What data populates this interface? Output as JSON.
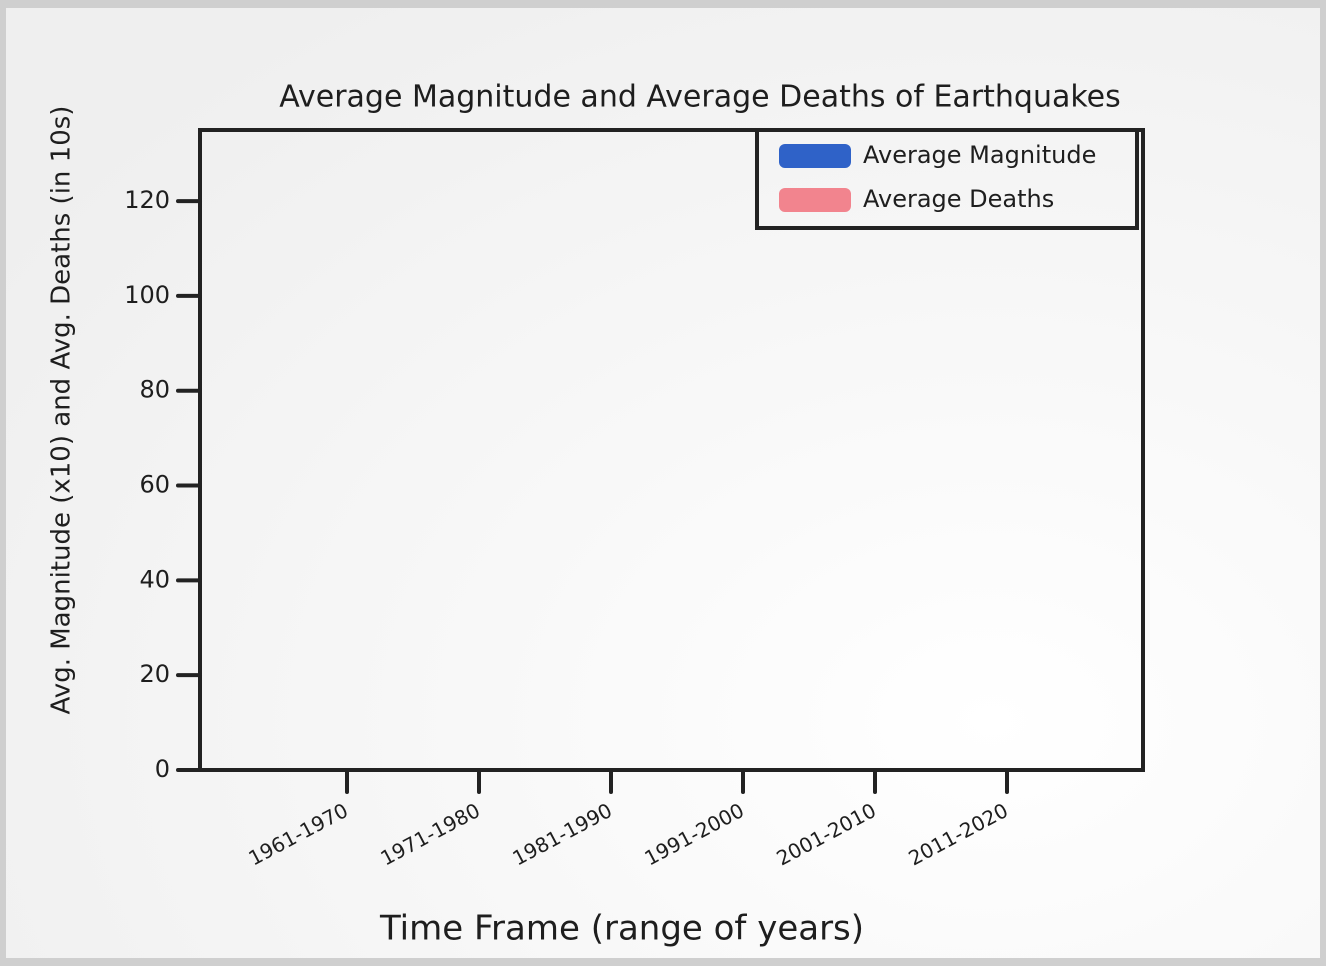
{
  "chart_data": {
    "type": "bar",
    "title": "Average Magnitude and Average Deaths of Earthquakes",
    "x_label": "Time Frame (range of years)",
    "y_label": "Avg. Magnitude (x10) and Avg. Deaths (in 10s)",
    "categories": [
      "1961-1970",
      "1971-1980",
      "1981-1990",
      "1991-2000",
      "2001-2010",
      "2011-2020"
    ],
    "series": [
      {
        "name": "Average Magnitude",
        "color": "#2f62c8",
        "values": [
          null,
          null,
          null,
          null,
          null,
          null
        ]
      },
      {
        "name": "Average Deaths",
        "color": "#f2848e",
        "values": [
          null,
          null,
          null,
          null,
          null,
          null
        ]
      }
    ],
    "ylim": [
      0,
      135
    ],
    "yticks": [
      0,
      20,
      40,
      60,
      80,
      100,
      120
    ],
    "legend": "upper right"
  }
}
